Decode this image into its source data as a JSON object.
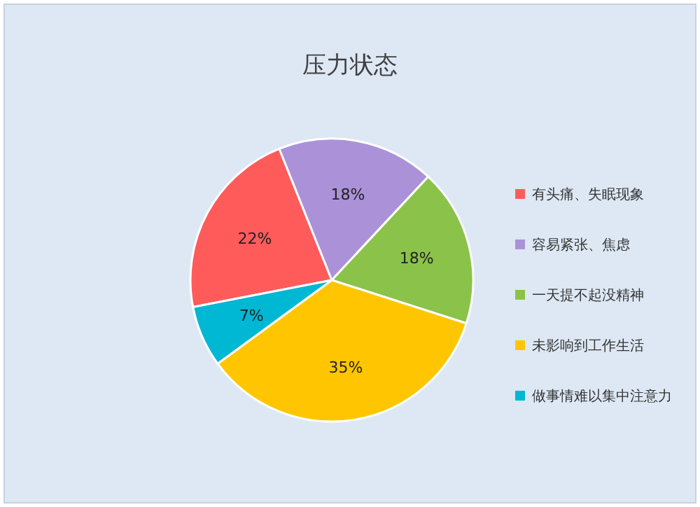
{
  "chart_data": {
    "type": "pie",
    "title": "压力状态",
    "categories": [
      "有头痛、失眠现象",
      "容易紧张、焦虑",
      "一天提不起没精神",
      "未影响到工作生活",
      "做事情难以集中注意力"
    ],
    "values": [
      22,
      18,
      18,
      35,
      7
    ],
    "colors": [
      "#ff5b5b",
      "#ab92d8",
      "#8bc24a",
      "#ffc600",
      "#00b7d4"
    ],
    "value_labels": [
      "22%",
      "18%",
      "18%",
      "35%",
      "7%"
    ],
    "legend": "right"
  }
}
